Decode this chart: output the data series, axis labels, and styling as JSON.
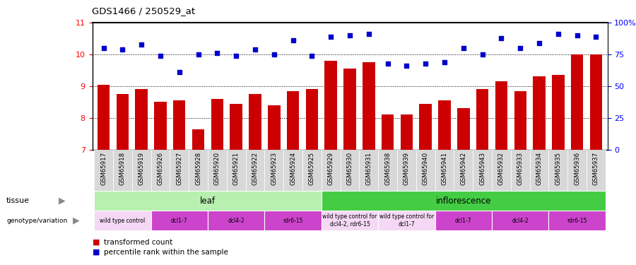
{
  "title": "GDS1466 / 250529_at",
  "samples": [
    "GSM65917",
    "GSM65918",
    "GSM65919",
    "GSM65926",
    "GSM65927",
    "GSM65928",
    "GSM65920",
    "GSM65921",
    "GSM65922",
    "GSM65923",
    "GSM65924",
    "GSM65925",
    "GSM65929",
    "GSM65930",
    "GSM65931",
    "GSM65938",
    "GSM65939",
    "GSM65940",
    "GSM65941",
    "GSM65942",
    "GSM65943",
    "GSM65932",
    "GSM65933",
    "GSM65934",
    "GSM65935",
    "GSM65936",
    "GSM65937"
  ],
  "bar_values": [
    9.05,
    8.75,
    8.9,
    8.5,
    8.55,
    7.65,
    8.6,
    8.45,
    8.75,
    8.4,
    8.85,
    8.9,
    9.8,
    9.55,
    9.75,
    8.1,
    8.1,
    8.45,
    8.55,
    8.3,
    8.9,
    9.15,
    8.85,
    9.3,
    9.35,
    10.0,
    10.0
  ],
  "dot_values": [
    10.2,
    10.15,
    10.3,
    9.95,
    9.45,
    10.0,
    10.05,
    9.95,
    10.15,
    10.0,
    10.45,
    9.95,
    10.55,
    10.6,
    10.65,
    9.7,
    9.65,
    9.7,
    9.75,
    10.2,
    10.0,
    10.5,
    10.2,
    10.35,
    10.65,
    10.6,
    10.55
  ],
  "ylim": [
    7,
    11
  ],
  "yticks": [
    7,
    8,
    9,
    10,
    11
  ],
  "right_ytick_percents": [
    0,
    25,
    50,
    75,
    100
  ],
  "right_ytick_labels": [
    "0",
    "25",
    "50",
    "75",
    "100%"
  ],
  "bar_color": "#cc0000",
  "dot_color": "#0000cc",
  "grid_levels": [
    8,
    9,
    10
  ],
  "tissue_blocks": [
    {
      "label": "leaf",
      "start": 0,
      "end": 11,
      "color": "#b8f0b0"
    },
    {
      "label": "inflorescence",
      "start": 12,
      "end": 26,
      "color": "#44cc44"
    }
  ],
  "genotype_groups": [
    {
      "label": "wild type control",
      "start": 0,
      "end": 2,
      "color": "#f5d8f5"
    },
    {
      "label": "dcl1-7",
      "start": 3,
      "end": 5,
      "color": "#cc44cc"
    },
    {
      "label": "dcl4-2",
      "start": 6,
      "end": 8,
      "color": "#cc44cc"
    },
    {
      "label": "rdr6-15",
      "start": 9,
      "end": 11,
      "color": "#cc44cc"
    },
    {
      "label": "wild type control for\ndcl4-2, rdr6-15",
      "start": 12,
      "end": 14,
      "color": "#f5d8f5"
    },
    {
      "label": "wild type control for\ndcl1-7",
      "start": 15,
      "end": 17,
      "color": "#f5d8f5"
    },
    {
      "label": "dcl1-7",
      "start": 18,
      "end": 20,
      "color": "#cc44cc"
    },
    {
      "label": "dcl4-2",
      "start": 21,
      "end": 23,
      "color": "#cc44cc"
    },
    {
      "label": "rdr6-15",
      "start": 24,
      "end": 26,
      "color": "#cc44cc"
    }
  ]
}
